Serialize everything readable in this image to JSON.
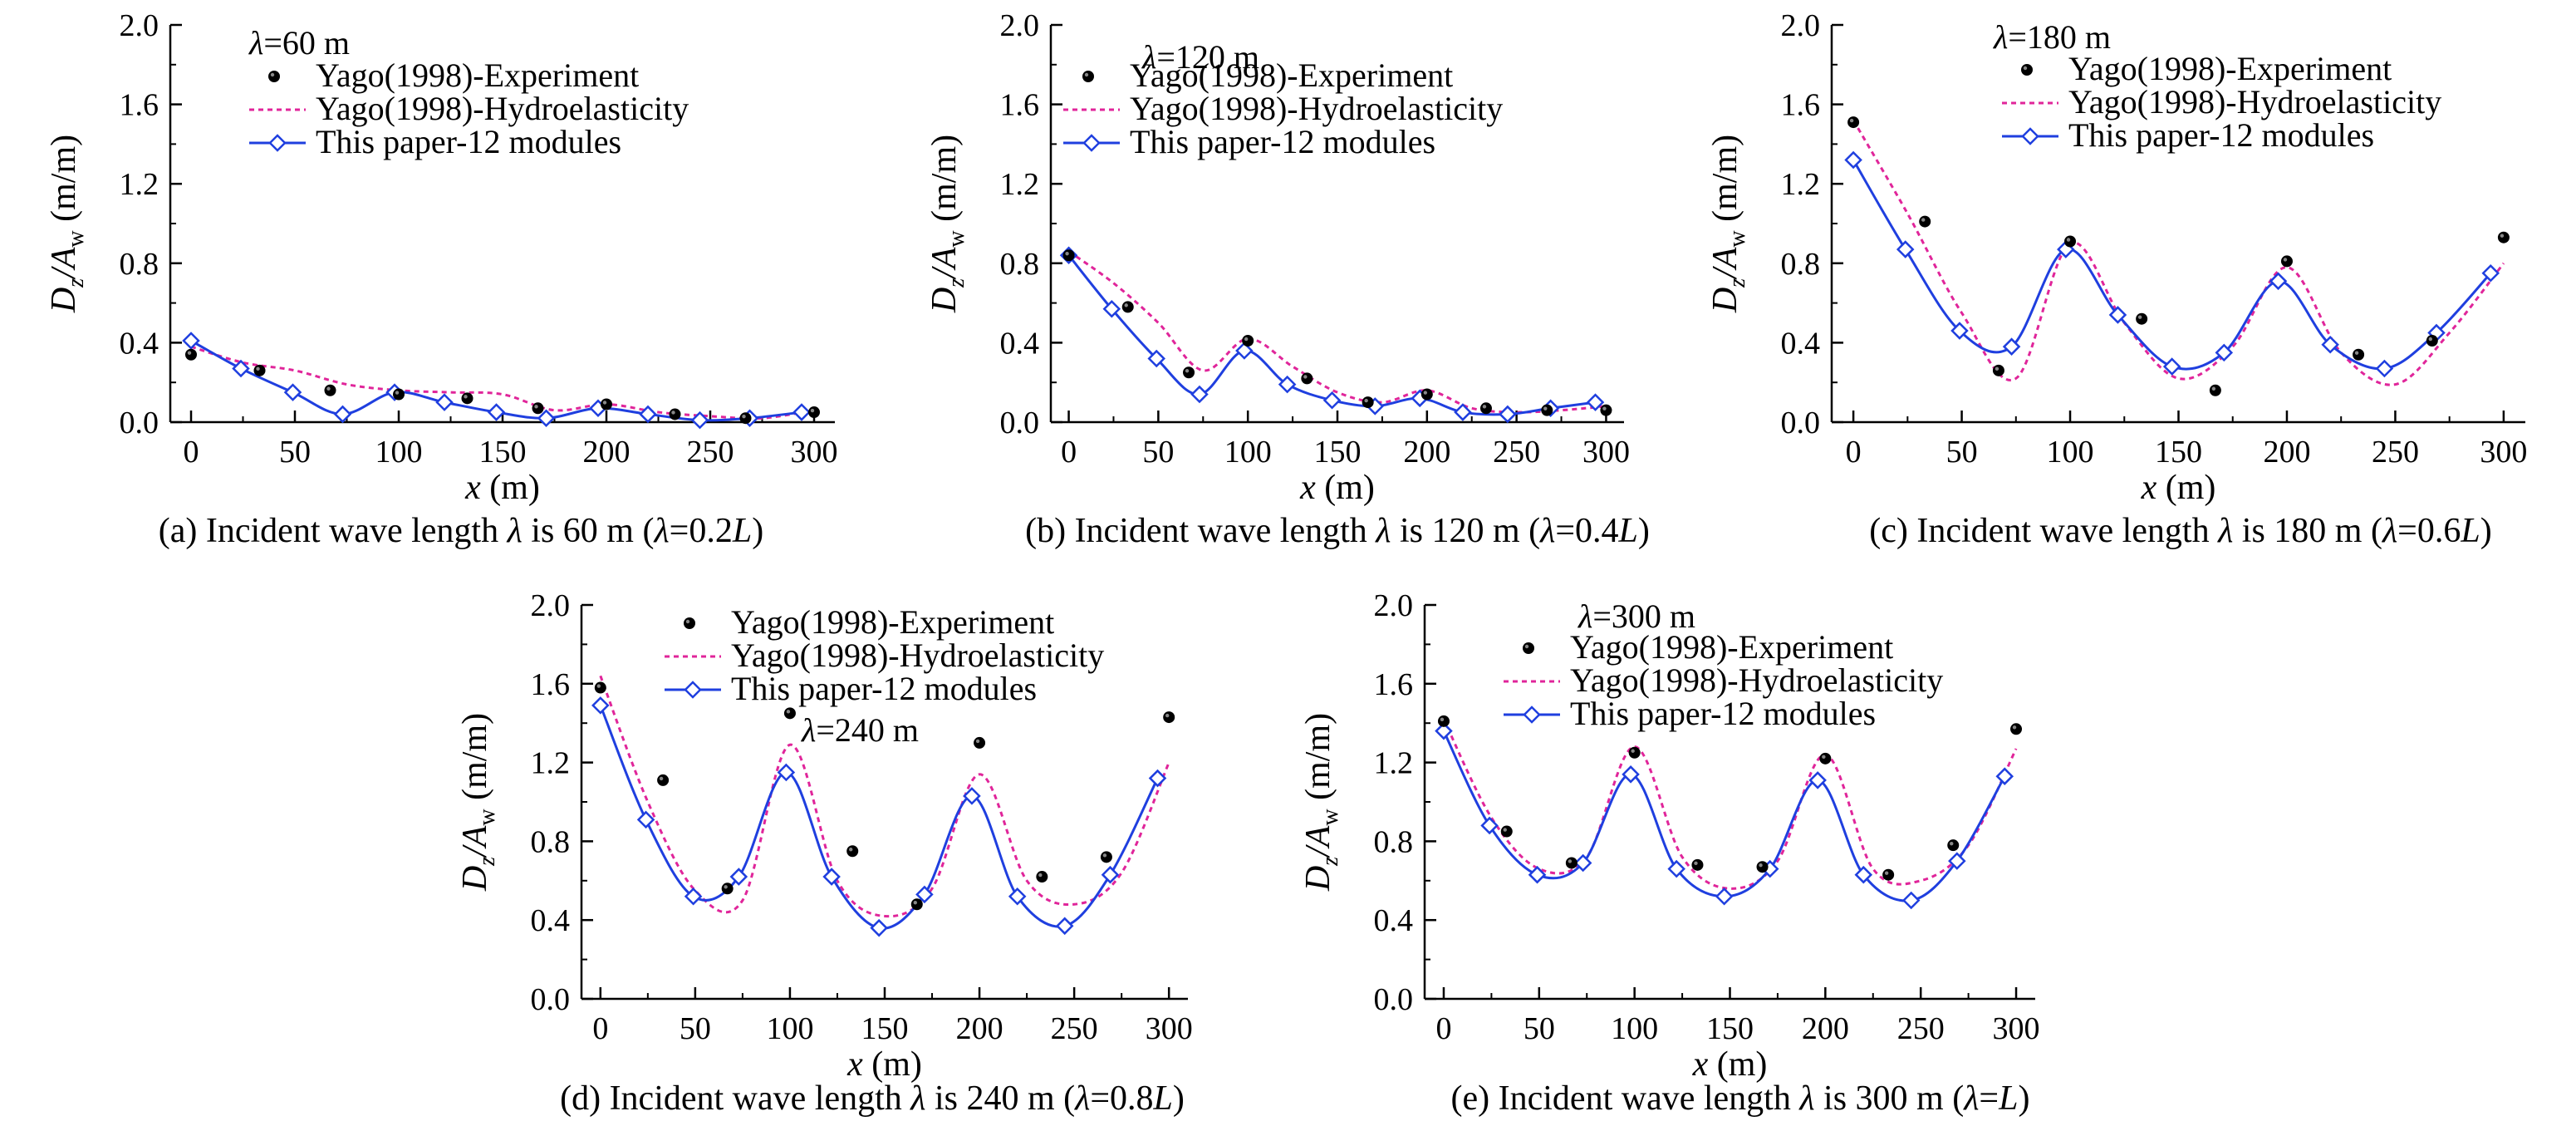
{
  "legend": {
    "experiment": "Yago(1998)-Experiment",
    "hydro": "Yago(1998)-Hydroelasticity",
    "paper": "This paper-12 modules"
  },
  "axis": {
    "ylabel_main": "D",
    "ylabel_sub1": "z",
    "ylabel_mid": "/A",
    "ylabel_sub2": "w",
    "ylabel_unit": " (m/m)",
    "xlabel_main": "x",
    "xlabel_unit": " (m)"
  },
  "colors": {
    "experiment": "#000000",
    "hydro": "#e0259a",
    "paper": "#1f3fdf"
  },
  "chart_data": [
    {
      "type": "scatter",
      "panel": "a",
      "annotation": {
        "lambda_sym": "λ",
        "value": "=60 m"
      },
      "caption": {
        "pre": "(a) Incident wave length ",
        "sym": "λ",
        "mid": " is 60 m (",
        "sym2": "λ",
        "eq": "=0.2",
        "L": "L",
        "post": ")"
      },
      "xlim": [
        -10,
        310
      ],
      "ylim": [
        0.0,
        2.0
      ],
      "xticks": [
        "0",
        "50",
        "100",
        "150",
        "200",
        "250",
        "300"
      ],
      "yticks": [
        "0.0",
        "0.4",
        "0.8",
        "1.2",
        "1.6",
        "2.0"
      ],
      "series": [
        {
          "name": "Yago(1998)-Experiment",
          "x": [
            0,
            33,
            67,
            100,
            133,
            167,
            200,
            233,
            267,
            300
          ],
          "y": [
            0.34,
            0.26,
            0.16,
            0.14,
            0.12,
            0.07,
            0.09,
            0.04,
            0.02,
            0.05
          ]
        },
        {
          "name": "Yago(1998)-Hydroelasticity",
          "x": [
            0,
            25,
            50,
            75,
            100,
            125,
            150,
            175,
            200,
            225,
            250,
            275,
            300
          ],
          "y": [
            0.38,
            0.3,
            0.26,
            0.19,
            0.16,
            0.15,
            0.14,
            0.06,
            0.09,
            0.05,
            0.03,
            0.02,
            0.06
          ]
        },
        {
          "name": "This paper-12 modules",
          "x": [
            0,
            24,
            49,
            73,
            98,
            122,
            147,
            171,
            196,
            220,
            245,
            269,
            294
          ],
          "y": [
            0.41,
            0.27,
            0.15,
            0.04,
            0.15,
            0.1,
            0.05,
            0.02,
            0.07,
            0.04,
            0.01,
            0.02,
            0.05
          ]
        }
      ]
    },
    {
      "type": "scatter",
      "panel": "b",
      "annotation": {
        "lambda_sym": "λ",
        "value": "=120 m"
      },
      "caption": {
        "pre": "(b) Incident wave length ",
        "sym": "λ",
        "mid": " is 120 m (",
        "sym2": "λ",
        "eq": "=0.4",
        "L": "L",
        "post": ")"
      },
      "xlim": [
        -10,
        310
      ],
      "ylim": [
        0.0,
        2.0
      ],
      "xticks": [
        "0",
        "50",
        "100",
        "150",
        "200",
        "250",
        "300"
      ],
      "yticks": [
        "0.0",
        "0.4",
        "0.8",
        "1.2",
        "1.6",
        "2.0"
      ],
      "series": [
        {
          "name": "Yago(1998)-Experiment",
          "x": [
            0,
            33,
            67,
            100,
            133,
            167,
            200,
            233,
            267,
            300
          ],
          "y": [
            0.84,
            0.58,
            0.25,
            0.41,
            0.22,
            0.1,
            0.14,
            0.07,
            0.06,
            0.06
          ]
        },
        {
          "name": "Yago(1998)-Hydroelasticity",
          "x": [
            0,
            25,
            50,
            75,
            100,
            125,
            150,
            175,
            200,
            225,
            250,
            275,
            300
          ],
          "y": [
            0.86,
            0.7,
            0.5,
            0.26,
            0.42,
            0.28,
            0.15,
            0.1,
            0.16,
            0.07,
            0.05,
            0.06,
            0.08
          ]
        },
        {
          "name": "This paper-12 modules",
          "x": [
            0,
            24,
            49,
            73,
            98,
            122,
            147,
            171,
            196,
            220,
            245,
            269,
            294
          ],
          "y": [
            0.84,
            0.57,
            0.32,
            0.14,
            0.36,
            0.19,
            0.11,
            0.08,
            0.12,
            0.05,
            0.04,
            0.07,
            0.1
          ]
        }
      ]
    },
    {
      "type": "scatter",
      "panel": "c",
      "annotation": {
        "lambda_sym": "λ",
        "value": "=180 m"
      },
      "caption": {
        "pre": "(c) Incident wave length ",
        "sym": "λ",
        "mid": " is 180 m (",
        "sym2": "λ",
        "eq": "=0.6",
        "L": "L",
        "post": ")"
      },
      "xlim": [
        -10,
        310
      ],
      "ylim": [
        0.0,
        2.0
      ],
      "xticks": [
        "0",
        "50",
        "100",
        "150",
        "200",
        "250",
        "300"
      ],
      "yticks": [
        "0.0",
        "0.4",
        "0.8",
        "1.2",
        "1.6",
        "2.0"
      ],
      "series": [
        {
          "name": "Yago(1998)-Experiment",
          "x": [
            0,
            33,
            67,
            100,
            133,
            167,
            200,
            233,
            267,
            300
          ],
          "y": [
            1.51,
            1.01,
            0.26,
            0.91,
            0.52,
            0.16,
            0.81,
            0.34,
            0.41,
            0.93
          ]
        },
        {
          "name": "Yago(1998)-Hydroelasticity",
          "x": [
            0,
            25,
            50,
            75,
            100,
            125,
            150,
            175,
            200,
            225,
            250,
            275,
            300
          ],
          "y": [
            1.52,
            1.05,
            0.55,
            0.22,
            0.9,
            0.5,
            0.22,
            0.38,
            0.78,
            0.35,
            0.19,
            0.45,
            0.8
          ]
        },
        {
          "name": "This paper-12 modules",
          "x": [
            0,
            24,
            49,
            73,
            98,
            122,
            147,
            171,
            196,
            220,
            245,
            269,
            294
          ],
          "y": [
            1.32,
            0.87,
            0.46,
            0.38,
            0.87,
            0.54,
            0.28,
            0.35,
            0.71,
            0.39,
            0.27,
            0.45,
            0.75
          ]
        }
      ]
    },
    {
      "type": "scatter",
      "panel": "d",
      "annotation": {
        "lambda_sym": "λ",
        "value": "=240 m"
      },
      "caption": {
        "pre": "(d) Incident wave length ",
        "sym": "λ",
        "mid": " is 240 m (",
        "sym2": "λ",
        "eq": "=0.8",
        "L": "L",
        "post": ")"
      },
      "xlim": [
        -10,
        310
      ],
      "ylim": [
        0.0,
        2.0
      ],
      "xticks": [
        "0",
        "50",
        "100",
        "150",
        "200",
        "250",
        "300"
      ],
      "yticks": [
        "0.0",
        "0.4",
        "0.8",
        "1.2",
        "1.6",
        "2.0"
      ],
      "series": [
        {
          "name": "Yago(1998)-Experiment",
          "x": [
            0,
            33,
            67,
            100,
            133,
            167,
            200,
            233,
            267,
            300
          ],
          "y": [
            1.58,
            1.11,
            0.56,
            1.45,
            0.75,
            0.48,
            1.3,
            0.62,
            0.72,
            1.43
          ]
        },
        {
          "name": "Yago(1998)-Hydroelasticity",
          "x": [
            0,
            25,
            50,
            75,
            100,
            125,
            150,
            175,
            200,
            225,
            250,
            275,
            300
          ],
          "y": [
            1.64,
            1.0,
            0.55,
            0.5,
            1.29,
            0.6,
            0.42,
            0.56,
            1.14,
            0.6,
            0.48,
            0.64,
            1.2
          ]
        },
        {
          "name": "This paper-12 modules",
          "x": [
            0,
            24,
            49,
            73,
            98,
            122,
            147,
            171,
            196,
            220,
            245,
            269,
            294
          ],
          "y": [
            1.49,
            0.91,
            0.52,
            0.62,
            1.15,
            0.62,
            0.36,
            0.53,
            1.03,
            0.52,
            0.37,
            0.63,
            1.12
          ]
        }
      ]
    },
    {
      "type": "scatter",
      "panel": "e",
      "annotation": {
        "lambda_sym": "λ",
        "value": "=300 m"
      },
      "caption": {
        "pre": "(e) Incident wave length ",
        "sym": "λ",
        "mid": " is 300 m (",
        "sym2": "λ",
        "eq": "=",
        "L": "L",
        "post": ")"
      },
      "xlim": [
        -10,
        310
      ],
      "ylim": [
        0.0,
        2.0
      ],
      "xticks": [
        "0",
        "50",
        "100",
        "150",
        "200",
        "250",
        "300"
      ],
      "yticks": [
        "0.0",
        "0.4",
        "0.8",
        "1.2",
        "1.6",
        "2.0"
      ],
      "series": [
        {
          "name": "Yago(1998)-Experiment",
          "x": [
            0,
            33,
            67,
            100,
            133,
            167,
            200,
            233,
            267,
            300
          ],
          "y": [
            1.41,
            0.85,
            0.69,
            1.25,
            0.68,
            0.67,
            1.22,
            0.63,
            0.78,
            1.37
          ]
        },
        {
          "name": "Yago(1998)-Hydroelasticity",
          "x": [
            0,
            25,
            50,
            75,
            100,
            125,
            150,
            175,
            200,
            225,
            250,
            275,
            300
          ],
          "y": [
            1.42,
            0.92,
            0.66,
            0.72,
            1.28,
            0.72,
            0.56,
            0.7,
            1.24,
            0.66,
            0.6,
            0.78,
            1.27
          ]
        },
        {
          "name": "This paper-12 modules",
          "x": [
            0,
            24,
            49,
            73,
            98,
            122,
            147,
            171,
            196,
            220,
            245,
            269,
            294
          ],
          "y": [
            1.36,
            0.88,
            0.63,
            0.69,
            1.14,
            0.66,
            0.52,
            0.66,
            1.11,
            0.63,
            0.5,
            0.7,
            1.13
          ]
        }
      ]
    }
  ]
}
